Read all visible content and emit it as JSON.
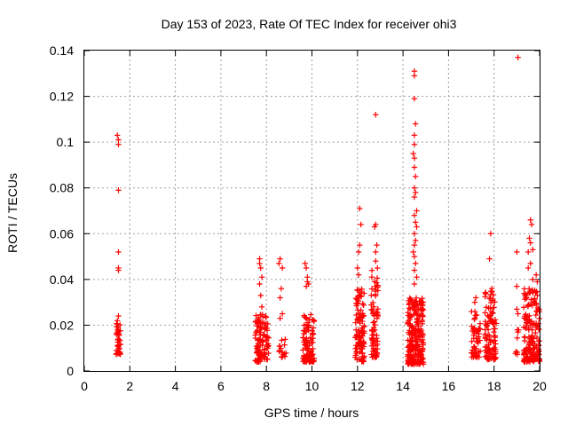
{
  "chart_data": {
    "type": "scatter",
    "title": "Day 153 of 2023, Rate Of TEC Index for receiver ohi3",
    "xlabel": "GPS time / hours",
    "ylabel": "ROTI / TECUs",
    "xlim": [
      0,
      20
    ],
    "ylim": [
      0,
      0.14
    ],
    "x_ticks": [
      "0",
      "2",
      "4",
      "6",
      "8",
      "10",
      "12",
      "14",
      "16",
      "18",
      "20"
    ],
    "y_ticks": [
      "0",
      "0.02",
      "0.04",
      "0.06",
      "0.08",
      "0.1",
      "0.12",
      "0.14"
    ],
    "grid": true,
    "marker": "plus",
    "colors": {
      "points": "#ff0000",
      "grid": "#a0a0a0",
      "frame": "#000000"
    },
    "clusters": [
      {
        "x_range": [
          1.4,
          1.6
        ],
        "ymin": 0.007,
        "ymax": 0.021,
        "count": 40,
        "outliers": [
          [
            1.45,
            0.103
          ],
          [
            1.5,
            0.101
          ],
          [
            1.5,
            0.099
          ],
          [
            1.5,
            0.079
          ],
          [
            1.5,
            0.052
          ],
          [
            1.5,
            0.045
          ],
          [
            1.5,
            0.044
          ],
          [
            1.5,
            0.024
          ],
          [
            1.45,
            0.022
          ]
        ]
      },
      {
        "x_range": [
          7.5,
          8.1
        ],
        "ymin": 0.004,
        "ymax": 0.025,
        "count": 110,
        "outliers": [
          [
            7.7,
            0.049
          ],
          [
            7.7,
            0.047
          ],
          [
            7.75,
            0.045
          ],
          [
            7.8,
            0.041
          ],
          [
            7.7,
            0.038
          ],
          [
            7.75,
            0.033
          ],
          [
            7.8,
            0.028
          ]
        ]
      },
      {
        "x_range": [
          8.5,
          8.9
        ],
        "ymin": 0.006,
        "ymax": 0.014,
        "count": 16,
        "outliers": [
          [
            8.6,
            0.049
          ],
          [
            8.55,
            0.047
          ],
          [
            8.7,
            0.045
          ],
          [
            8.65,
            0.036
          ],
          [
            8.6,
            0.032
          ],
          [
            8.7,
            0.025
          ],
          [
            8.6,
            0.023
          ]
        ]
      },
      {
        "x_range": [
          9.6,
          10.1
        ],
        "ymin": 0.004,
        "ymax": 0.025,
        "count": 95,
        "outliers": [
          [
            9.7,
            0.047
          ],
          [
            9.75,
            0.045
          ],
          [
            9.8,
            0.041
          ],
          [
            9.8,
            0.039
          ],
          [
            9.85,
            0.038
          ],
          [
            9.75,
            0.037
          ]
        ]
      },
      {
        "x_range": [
          11.9,
          12.3
        ],
        "ymin": 0.004,
        "ymax": 0.036,
        "count": 110,
        "outliers": [
          [
            12.1,
            0.071
          ],
          [
            12.15,
            0.064
          ],
          [
            12.1,
            0.055
          ],
          [
            12.05,
            0.052
          ],
          [
            12.0,
            0.045
          ],
          [
            12.05,
            0.042
          ]
        ]
      },
      {
        "x_range": [
          12.6,
          12.9
        ],
        "ymin": 0.006,
        "ymax": 0.045,
        "count": 75,
        "outliers": [
          [
            12.8,
            0.112
          ],
          [
            12.8,
            0.064
          ],
          [
            12.75,
            0.063
          ],
          [
            12.85,
            0.055
          ],
          [
            12.8,
            0.052
          ],
          [
            12.8,
            0.048
          ]
        ]
      },
      {
        "x_range": [
          14.2,
          14.9
        ],
        "ymin": 0.003,
        "ymax": 0.032,
        "count": 240,
        "outliers": [
          [
            14.5,
            0.131
          ],
          [
            14.5,
            0.129
          ],
          [
            14.5,
            0.119
          ],
          [
            14.55,
            0.108
          ],
          [
            14.5,
            0.103
          ],
          [
            14.5,
            0.099
          ],
          [
            14.45,
            0.095
          ],
          [
            14.5,
            0.093
          ],
          [
            14.5,
            0.089
          ],
          [
            14.55,
            0.085
          ],
          [
            14.5,
            0.08
          ],
          [
            14.55,
            0.078
          ],
          [
            14.5,
            0.076
          ],
          [
            14.6,
            0.07
          ],
          [
            14.5,
            0.068
          ],
          [
            14.55,
            0.065
          ],
          [
            14.6,
            0.063
          ],
          [
            14.5,
            0.06
          ],
          [
            14.55,
            0.057
          ],
          [
            14.5,
            0.055
          ],
          [
            14.45,
            0.052
          ],
          [
            14.5,
            0.05
          ],
          [
            14.55,
            0.047
          ],
          [
            14.5,
            0.044
          ],
          [
            14.6,
            0.041
          ],
          [
            14.5,
            0.038
          ]
        ]
      },
      {
        "x_range": [
          17.0,
          17.4
        ],
        "ymin": 0.006,
        "ymax": 0.026,
        "count": 55,
        "outliers": [
          [
            17.2,
            0.032
          ],
          [
            17.15,
            0.03
          ]
        ]
      },
      {
        "x_range": [
          17.6,
          18.1
        ],
        "ymin": 0.005,
        "ymax": 0.035,
        "count": 100,
        "outliers": [
          [
            17.85,
            0.06
          ],
          [
            17.8,
            0.049
          ],
          [
            17.9,
            0.036
          ]
        ]
      },
      {
        "x_range": [
          18.9,
          19.1
        ],
        "ymin": 0.007,
        "ymax": 0.02,
        "count": 8,
        "outliers": [
          [
            19.05,
            0.137
          ],
          [
            19.0,
            0.052
          ],
          [
            19.0,
            0.037
          ],
          [
            19.0,
            0.027
          ],
          [
            19.05,
            0.025
          ]
        ]
      },
      {
        "x_range": [
          19.3,
          20.0
        ],
        "ymin": 0.004,
        "ymax": 0.036,
        "count": 170,
        "outliers": [
          [
            19.6,
            0.066
          ],
          [
            19.65,
            0.064
          ],
          [
            19.55,
            0.058
          ],
          [
            19.6,
            0.056
          ],
          [
            19.5,
            0.052
          ],
          [
            19.7,
            0.053
          ],
          [
            19.6,
            0.047
          ],
          [
            19.5,
            0.045
          ],
          [
            19.85,
            0.042
          ],
          [
            19.7,
            0.04
          ],
          [
            19.9,
            0.039
          ]
        ]
      }
    ]
  }
}
